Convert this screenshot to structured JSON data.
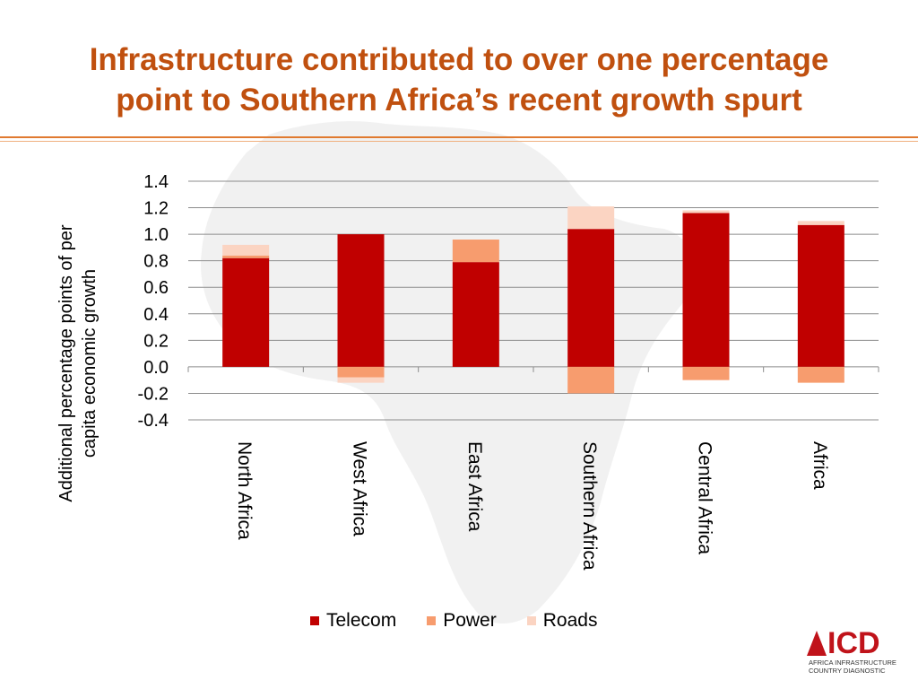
{
  "slide": {
    "title_line1": "Infrastructure contributed to over one percentage",
    "title_line2": "point to Southern Africa’s recent growth spurt",
    "title_color": "#c0500f"
  },
  "chart_data": {
    "type": "bar",
    "stacked": true,
    "title": "",
    "xlabel": "",
    "ylabel": "Additional percentage points of per capita economic growth",
    "ylabel_line1": "Additional percentage points of per",
    "ylabel_line2": "capita economic growth",
    "ylim": [
      -0.4,
      1.4
    ],
    "yticks": [
      1.4,
      1.2,
      1.0,
      0.8,
      0.6,
      0.4,
      0.2,
      0.0,
      -0.2,
      -0.4
    ],
    "ytick_labels": [
      "1.4",
      "1.2",
      "1.0",
      "0.8",
      "0.6",
      "0.4",
      "0.2",
      "0.0",
      "-0.2",
      "-0.4"
    ],
    "grid": true,
    "legend_position": "bottom",
    "categories": [
      "North Africa",
      "West Africa",
      "East Africa",
      "Southern Africa",
      "Central Africa",
      "Africa"
    ],
    "series": [
      {
        "name": "Telecom",
        "color": "#c00000",
        "values": [
          0.82,
          1.0,
          0.79,
          1.04,
          1.16,
          1.07
        ]
      },
      {
        "name": "Power",
        "color": "#f79c6e",
        "values": [
          0.02,
          -0.08,
          0.17,
          -0.2,
          -0.1,
          -0.12
        ]
      },
      {
        "name": "Roads",
        "color": "#fbd4c2",
        "values": [
          0.08,
          -0.04,
          0.0,
          0.17,
          0.02,
          0.03
        ]
      }
    ]
  },
  "legend": {
    "telecom": "Telecom",
    "power": "Power",
    "roads": "Roads"
  },
  "logo": {
    "mark": "ICD",
    "line1": "AFRICA INFRASTRUCTURE",
    "line2": "COUNTRY DIAGNOSTIC",
    "color": "#c0131a"
  }
}
